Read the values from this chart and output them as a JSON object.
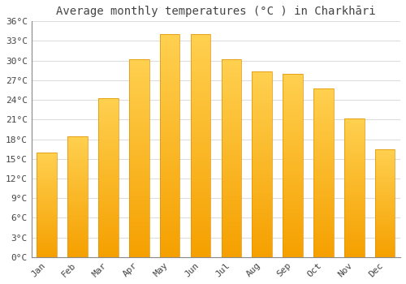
{
  "title": "Average monthly temperatures (°C ) in Charkhāri",
  "months": [
    "Jan",
    "Feb",
    "Mar",
    "Apr",
    "May",
    "Jun",
    "Jul",
    "Aug",
    "Sep",
    "Oct",
    "Nov",
    "Dec"
  ],
  "values": [
    16.0,
    18.5,
    24.3,
    30.2,
    34.0,
    34.0,
    30.2,
    28.3,
    28.0,
    25.8,
    21.2,
    16.5
  ],
  "bar_color_top": "#FFD050",
  "bar_color_bottom": "#F5A000",
  "background_color": "#FFFFFF",
  "grid_color": "#DDDDDD",
  "text_color": "#444444",
  "ylim": [
    0,
    36
  ],
  "ytick_step": 3,
  "title_fontsize": 10,
  "tick_fontsize": 8,
  "font_family": "monospace"
}
